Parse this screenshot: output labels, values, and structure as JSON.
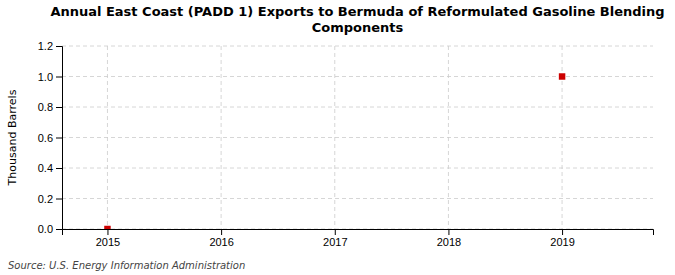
{
  "chart_data": {
    "type": "scatter",
    "title": "Annual East Coast (PADD 1) Exports to Bermuda of Reformulated Gasoline Blending\nComponents",
    "y_label": "Thousand Barrels",
    "source": "Source: U.S. Energy Information Administration",
    "x": [
      2015,
      2019
    ],
    "values": [
      0,
      1.0
    ],
    "color": "#cc0000",
    "marker": "square",
    "xlim": [
      2014.6,
      2019.8
    ],
    "xticks": [
      2015,
      2016,
      2017,
      2018,
      2019
    ],
    "ylim": [
      0.0,
      1.2
    ],
    "yticks": [
      {
        "value": 0.0,
        "label": "0.0"
      },
      0.2,
      0.4,
      0.6,
      0.8,
      {
        "value": 1.0,
        "label": "1.0"
      },
      1.2
    ],
    "grid": true
  }
}
